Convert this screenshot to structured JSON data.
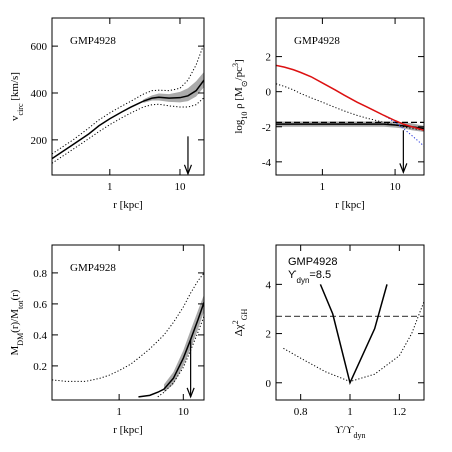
{
  "chart_data": [
    {
      "type": "line",
      "title": "GMP4928",
      "xlog": true,
      "xlabel": [
        {
          "text": "r [kpc]"
        }
      ],
      "ylabel": [
        {
          "text": "v"
        },
        {
          "text": "circ",
          "shift": "sub"
        },
        {
          "text": " [km/s]"
        }
      ],
      "xlim": [
        0.15,
        22
      ],
      "ylim": [
        50,
        720
      ],
      "xticks": [
        1,
        10
      ],
      "yticks": [
        200,
        400,
        600
      ],
      "x": [
        0.15,
        0.2,
        0.3,
        0.5,
        0.7,
        1,
        1.5,
        2,
        3,
        4,
        5,
        7,
        10,
        13,
        17,
        22
      ],
      "bands": [
        {
          "color": "#aaaaaa",
          "x": [
            3,
            4,
            5,
            7,
            10,
            13,
            17,
            22
          ],
          "upper": [
            372,
            390,
            398,
            395,
            405,
            420,
            450,
            490
          ],
          "lower": [
            358,
            368,
            368,
            362,
            360,
            365,
            385,
            425
          ]
        }
      ],
      "series": [
        {
          "color": "#000000",
          "style": "solid",
          "values": [
            120,
            145,
            180,
            225,
            260,
            290,
            320,
            340,
            365,
            378,
            382,
            378,
            380,
            388,
            410,
            455
          ]
        },
        {
          "color": "#000000",
          "style": "dotted",
          "values": [
            140,
            165,
            200,
            250,
            285,
            315,
            345,
            365,
            395,
            410,
            412,
            410,
            420,
            455,
            520,
            610
          ]
        },
        {
          "color": "#000000",
          "style": "dotted",
          "values": [
            100,
            125,
            160,
            205,
            235,
            265,
            295,
            315,
            340,
            350,
            352,
            345,
            340,
            340,
            350,
            380
          ]
        }
      ],
      "arrows": [
        {
          "x": 13,
          "y": [
            215,
            55
          ]
        }
      ]
    },
    {
      "type": "line",
      "title": "GMP4928",
      "xlog": true,
      "xlabel": [
        {
          "text": "r [kpc]"
        }
      ],
      "ylabel": [
        {
          "text": "log"
        },
        {
          "text": "10",
          "shift": "sub"
        },
        {
          "text": " ρ [M"
        },
        {
          "text": "⊙",
          "shift": "sub"
        },
        {
          "text": "/pc"
        },
        {
          "text": "3",
          "shift": "super"
        },
        {
          "text": "]"
        }
      ],
      "xlim": [
        0.23,
        25
      ],
      "ylim": [
        -4.75,
        4.2
      ],
      "xticks": [
        1,
        10
      ],
      "yticks": [
        -4,
        -2,
        0,
        2
      ],
      "x": [
        0.23,
        0.3,
        0.4,
        0.5,
        0.7,
        1,
        1.5,
        2,
        3,
        4,
        5,
        7,
        10,
        13,
        17,
        25
      ],
      "bands": [
        {
          "color": "#aaaaaa",
          "x": [
            0.23,
            0.3,
            0.4,
            0.5,
            0.7,
            1,
            1.5,
            2,
            3,
            4,
            5,
            7,
            10,
            13,
            17,
            25
          ],
          "upper": [
            -1.7,
            -1.7,
            -1.7,
            -1.7,
            -1.7,
            -1.7,
            -1.7,
            -1.7,
            -1.7,
            -1.7,
            -1.7,
            -1.7,
            -1.7,
            -1.75,
            -1.8,
            -1.95
          ],
          "lower": [
            -2.0,
            -2.0,
            -2.0,
            -2.0,
            -2.0,
            -2.0,
            -2.0,
            -2.0,
            -2.0,
            -2.0,
            -2.0,
            -2.0,
            -2.05,
            -2.1,
            -2.2,
            -2.3
          ]
        }
      ],
      "hlines": [
        {
          "y": -1.75,
          "style": "dashed",
          "color": "#000000"
        }
      ],
      "series": [
        {
          "color": "#000000",
          "style": "solid",
          "values": [
            -1.85,
            -1.85,
            -1.85,
            -1.85,
            -1.85,
            -1.85,
            -1.85,
            -1.85,
            -1.85,
            -1.85,
            -1.85,
            -1.85,
            -1.9,
            -1.95,
            -2.0,
            -2.1
          ]
        },
        {
          "color": "#000000",
          "style": "dotted",
          "values": [
            0.45,
            0.3,
            0.1,
            -0.1,
            -0.35,
            -0.6,
            -0.9,
            -1.1,
            -1.35,
            -1.5,
            -1.6,
            -1.75,
            -1.9,
            -2.0,
            -2.1,
            -2.2
          ]
        },
        {
          "color": "#2233dd",
          "style": "dotted",
          "values": [
            1.5,
            1.4,
            1.25,
            1.1,
            0.85,
            0.5,
            0.1,
            -0.2,
            -0.6,
            -0.85,
            -1.05,
            -1.35,
            -1.75,
            -2.1,
            -2.5,
            -3.1
          ]
        },
        {
          "color": "#dd1111",
          "style": "solid",
          "values": [
            1.5,
            1.4,
            1.25,
            1.1,
            0.85,
            0.5,
            0.1,
            -0.2,
            -0.6,
            -0.85,
            -1.05,
            -1.35,
            -1.65,
            -1.85,
            -2.0,
            -2.2
          ]
        }
      ],
      "arrows": [
        {
          "x": 13,
          "y": [
            -2.2,
            -4.6
          ]
        }
      ]
    },
    {
      "type": "line",
      "title": "GMP4928",
      "xlog": true,
      "xlabel": [
        {
          "text": "r [kpc]"
        }
      ],
      "ylabel": [
        {
          "text": "M"
        },
        {
          "text": "DM",
          "shift": "sub"
        },
        {
          "text": "(r)/M"
        },
        {
          "text": "tot",
          "shift": "sub"
        },
        {
          "text": "(r)"
        }
      ],
      "xlim": [
        0.09,
        21
      ],
      "ylim": [
        -0.02,
        0.98
      ],
      "xticks": [
        1,
        10
      ],
      "yticks": [
        0.2,
        0.4,
        0.6,
        0.8
      ],
      "x": [
        0.09,
        0.15,
        0.3,
        0.5,
        0.7,
        1,
        1.5,
        2,
        3,
        4,
        5,
        7,
        10,
        13,
        17,
        21
      ],
      "bands": [
        {
          "color": "#aaaaaa",
          "x": [
            5,
            7,
            10,
            13,
            17,
            21
          ],
          "upper": [
            0.08,
            0.16,
            0.3,
            0.43,
            0.56,
            0.66
          ],
          "lower": [
            0.03,
            0.08,
            0.2,
            0.31,
            0.44,
            0.55
          ]
        }
      ],
      "series": [
        {
          "color": "#000000",
          "style": "dotted",
          "values": [
            0.11,
            0.1,
            0.1,
            0.12,
            0.14,
            0.17,
            0.21,
            0.25,
            0.31,
            0.36,
            0.4,
            0.48,
            0.58,
            0.67,
            0.75,
            0.8
          ]
        },
        {
          "color": "#000000",
          "style": "dotted",
          "values": [
            null,
            null,
            null,
            null,
            null,
            null,
            null,
            null,
            null,
            0.0,
            0.03,
            0.09,
            0.19,
            0.3,
            0.42,
            0.52
          ]
        },
        {
          "color": "#000000",
          "style": "solid",
          "values": [
            null,
            null,
            null,
            null,
            null,
            null,
            null,
            0.0,
            0.01,
            0.03,
            0.05,
            0.12,
            0.25,
            0.37,
            0.5,
            0.61
          ]
        }
      ],
      "arrows": [
        {
          "x": 13,
          "y": [
            0.37,
            0.0
          ]
        }
      ]
    },
    {
      "type": "line",
      "title": "GMP4928",
      "title_style": "small",
      "xlog": false,
      "annotation": [
        {
          "text": "ϒ"
        },
        {
          "text": "dyn",
          "shift": "sub"
        },
        {
          "text": "=8.5"
        }
      ],
      "xlabel": [
        {
          "text": "ϒ/ϒ"
        },
        {
          "text": "dyn",
          "shift": "sub"
        }
      ],
      "ylabel": [
        {
          "text": "Δχ"
        },
        {
          "text": "2",
          "shift": "super"
        },
        {
          "text": "GH",
          "shift": "sub"
        }
      ],
      "xlim": [
        0.7,
        1.3
      ],
      "ylim": [
        -0.7,
        5.6
      ],
      "xticks": [
        0.8,
        1,
        1.2
      ],
      "yticks": [
        0,
        2,
        4
      ],
      "hlines": [
        {
          "y": 2.7,
          "style": "dashed",
          "color": "#555555"
        }
      ],
      "series": [
        {
          "color": "#000000",
          "style": "solid",
          "x": [
            0.88,
            0.93,
            1.0,
            1.1,
            1.15
          ],
          "values": [
            4,
            2.8,
            0,
            2.2,
            4
          ]
        },
        {
          "color": "#000000",
          "style": "dotted",
          "x": [
            0.73,
            0.8,
            0.9,
            1.0,
            1.1,
            1.2,
            1.25,
            1.3
          ],
          "values": [
            1.4,
            1.0,
            0.45,
            0.05,
            0.35,
            1.1,
            2.0,
            3.3
          ]
        }
      ]
    }
  ]
}
